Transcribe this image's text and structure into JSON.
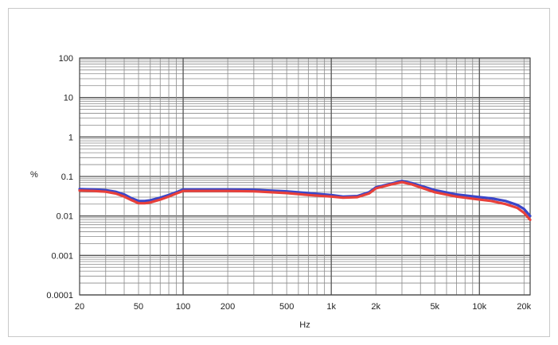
{
  "chart_data": {
    "type": "line",
    "title": "",
    "xlabel": "Hz",
    "ylabel": "%",
    "x_scale": "log",
    "y_scale": "log",
    "xlim": [
      20,
      22000
    ],
    "ylim": [
      0.0001,
      100
    ],
    "grid": true,
    "legend": "none",
    "x_ticks": [
      20,
      50,
      100,
      200,
      500,
      1000,
      2000,
      5000,
      10000,
      20000
    ],
    "x_tick_labels": [
      "20",
      "50",
      "100",
      "200",
      "500",
      "1k",
      "2k",
      "5k",
      "10k",
      "20k"
    ],
    "y_ticks": [
      0.0001,
      0.001,
      0.01,
      0.1,
      1,
      10,
      100
    ],
    "y_tick_labels": [
      "0.0001",
      "0.001",
      "0.01",
      "0.1",
      "1",
      "10",
      "100"
    ],
    "series": [
      {
        "color": "#3a46c8",
        "x": [
          20,
          25,
          30,
          35,
          40,
          45,
          50,
          55,
          60,
          70,
          80,
          90,
          100,
          150,
          200,
          300,
          500,
          700,
          1000,
          1200,
          1500,
          1800,
          2000,
          2500,
          3000,
          3500,
          4000,
          5000,
          7000,
          10000,
          12000,
          15000,
          18000,
          20000,
          22000
        ],
        "values": [
          0.048,
          0.047,
          0.045,
          0.041,
          0.035,
          0.028,
          0.024,
          0.024,
          0.025,
          0.029,
          0.034,
          0.04,
          0.047,
          0.047,
          0.047,
          0.046,
          0.042,
          0.038,
          0.034,
          0.031,
          0.032,
          0.04,
          0.053,
          0.065,
          0.077,
          0.068,
          0.058,
          0.045,
          0.035,
          0.03,
          0.028,
          0.024,
          0.019,
          0.015,
          0.01
        ]
      },
      {
        "color": "#e8403a",
        "x": [
          20,
          25,
          30,
          35,
          40,
          45,
          50,
          55,
          60,
          70,
          80,
          90,
          100,
          150,
          200,
          300,
          500,
          700,
          1000,
          1200,
          1500,
          1800,
          2000,
          2500,
          3000,
          3500,
          4000,
          5000,
          7000,
          10000,
          12000,
          15000,
          18000,
          20000,
          22000
        ],
        "values": [
          0.044,
          0.043,
          0.041,
          0.037,
          0.031,
          0.025,
          0.021,
          0.021,
          0.022,
          0.026,
          0.031,
          0.037,
          0.043,
          0.043,
          0.043,
          0.042,
          0.038,
          0.034,
          0.031,
          0.029,
          0.03,
          0.037,
          0.05,
          0.062,
          0.072,
          0.063,
          0.053,
          0.04,
          0.031,
          0.026,
          0.024,
          0.02,
          0.016,
          0.012,
          0.008
        ]
      }
    ]
  }
}
